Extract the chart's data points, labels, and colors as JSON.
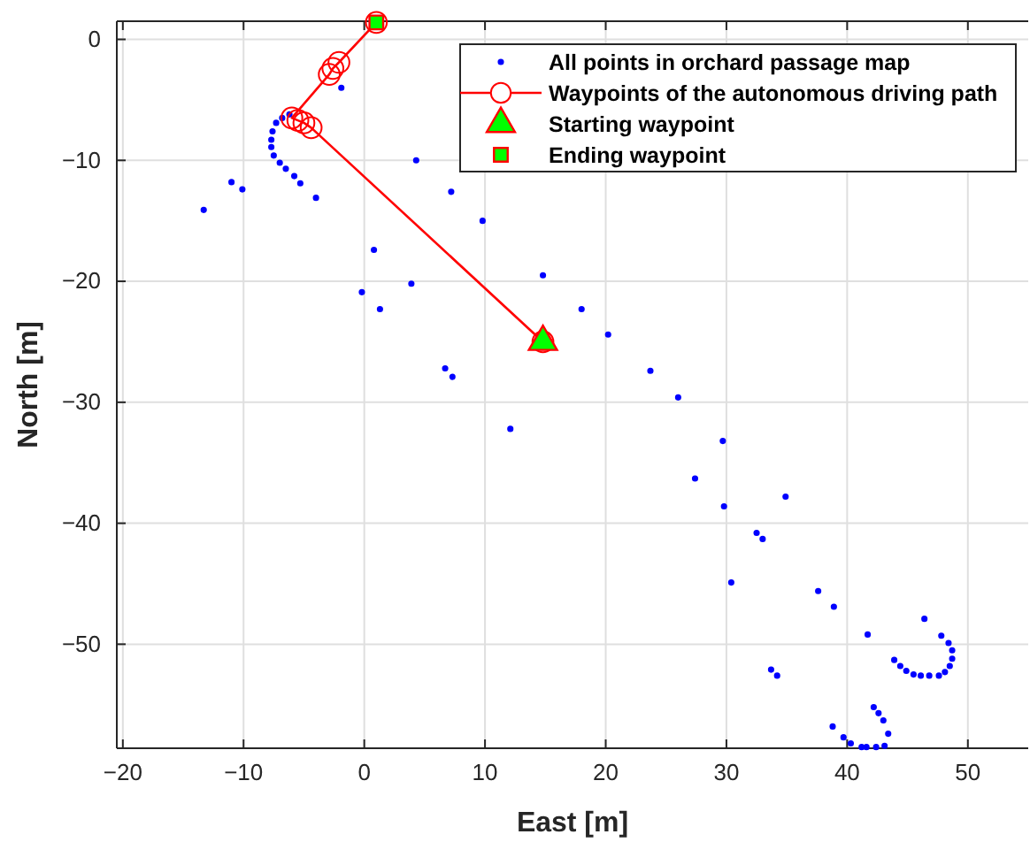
{
  "chart_data": {
    "type": "scatter",
    "xlabel": "East [m]",
    "ylabel": "North [m]",
    "xlim": [
      -20.5,
      55
    ],
    "ylim": [
      -58.6,
      1.5
    ],
    "xticks": [
      {
        "value": -20,
        "label": "−20"
      },
      {
        "value": -10,
        "label": "−10"
      },
      0,
      10,
      20,
      30,
      40,
      50
    ],
    "yticks": [
      {
        "value": -50,
        "label": "−50"
      },
      {
        "value": -40,
        "label": "−40"
      },
      {
        "value": -30,
        "label": "−30"
      },
      {
        "value": -20,
        "label": "−20"
      },
      {
        "value": -10,
        "label": "−10"
      },
      0
    ],
    "grid": true,
    "legend": "top right",
    "series": [
      {
        "name": "All points in orchard passage map",
        "marker": "circle",
        "color": "#0000ff",
        "x": [
          -13.3,
          -11.0,
          -10.1,
          -0.2,
          1.3,
          6.7,
          7.3,
          12.1,
          33.7,
          34.2,
          38.8,
          39.7,
          40.3,
          41.2,
          41.6,
          42.4,
          43.1,
          43.4,
          43.0,
          42.6,
          42.2,
          30.4,
          3.9,
          0.8,
          -4.0,
          -5.3,
          -5.8,
          -6.5,
          -7.0,
          -7.5,
          -7.7,
          -7.7,
          -7.6,
          -7.3,
          -6.8,
          -6.2,
          27.4,
          29.8,
          32.5,
          33.0,
          37.6,
          38.9,
          41.7,
          43.9,
          44.4,
          44.9,
          45.5,
          46.1,
          46.8,
          47.6,
          48.1,
          48.5,
          48.7,
          48.7,
          48.4,
          47.8,
          46.4,
          34.9,
          29.7,
          26.0,
          23.7,
          20.2,
          18.0,
          14.8,
          9.8,
          7.2,
          4.3,
          -1.9
        ],
        "values": [
          -14.1,
          -11.8,
          -12.4,
          -20.9,
          -22.3,
          -27.2,
          -27.9,
          -32.2,
          -52.1,
          -52.6,
          -56.8,
          -57.7,
          -58.2,
          -58.5,
          -58.5,
          -58.5,
          -58.4,
          -57.4,
          -56.3,
          -55.7,
          -55.2,
          -44.9,
          -20.2,
          -17.4,
          -13.1,
          -11.9,
          -11.3,
          -10.7,
          -10.2,
          -9.6,
          -8.9,
          -8.3,
          -7.6,
          -6.9,
          -6.5,
          -6.2,
          -36.3,
          -38.6,
          -40.8,
          -41.3,
          -45.6,
          -46.9,
          -49.2,
          -51.3,
          -51.8,
          -52.2,
          -52.5,
          -52.6,
          -52.6,
          -52.6,
          -52.3,
          -51.8,
          -51.2,
          -50.5,
          -49.9,
          -49.3,
          -47.9,
          -37.8,
          -33.2,
          -29.6,
          -27.4,
          -24.4,
          -22.3,
          -19.5,
          -15.0,
          -12.6,
          -10.0,
          -4.0
        ]
      },
      {
        "name": "Waypoints of the autonomous driving path",
        "type": "line",
        "marker": "circle",
        "line_style": "solid",
        "color": "#ff0000",
        "x": [
          14.8,
          -4.4,
          -5.0,
          -5.5,
          -6.0,
          -2.9,
          -2.6,
          -2.1,
          1.0
        ],
        "values": [
          -25.0,
          -7.3,
          -6.9,
          -6.7,
          -6.5,
          -2.9,
          -2.4,
          -1.9,
          1.4
        ]
      },
      {
        "name": "Starting waypoint",
        "marker": "triangle",
        "color": "#00ff00",
        "x": [
          14.8
        ],
        "values": [
          -25.0
        ]
      },
      {
        "name": "Ending waypoint",
        "marker": "square",
        "color": "#00ff00",
        "x": [
          1.0
        ],
        "values": [
          1.4
        ]
      }
    ]
  }
}
